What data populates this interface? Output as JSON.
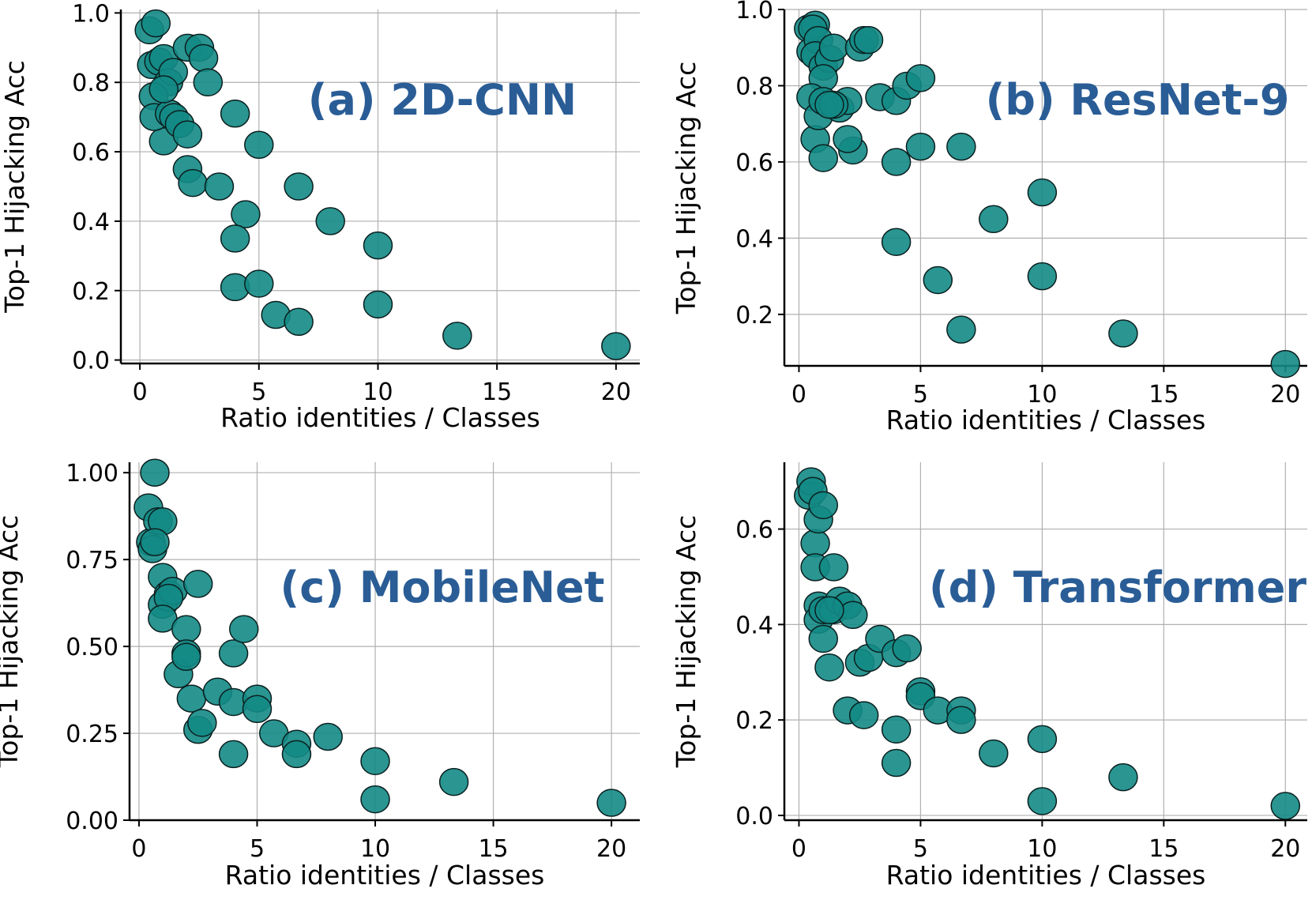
{
  "colors": {
    "point_fill": "#138a85",
    "title_color": "#2a5d96"
  },
  "chart_data": [
    {
      "type": "scatter",
      "title": "(a) 2D-CNN",
      "xlabel": "Ratio identities / Classes",
      "ylabel": "Top-1 Hijacking Acc",
      "xlim": [
        -0.8,
        21
      ],
      "ylim": [
        -0.01,
        1.01
      ],
      "xticks": [
        0,
        5,
        10,
        15,
        20
      ],
      "xtick_labels": [
        "0",
        "5",
        "10",
        "15",
        "20"
      ],
      "yticks": [
        0.0,
        0.2,
        0.4,
        0.6,
        0.8,
        1.0
      ],
      "ytick_labels": [
        "0.0",
        "0.2",
        "0.4",
        "0.6",
        "0.8",
        "1.0"
      ],
      "legend_position": "top-right",
      "grid": true,
      "x": [
        0.4,
        0.67,
        0.5,
        0.8,
        1.0,
        1.2,
        1.4,
        0.57,
        1.0,
        0.6,
        1.25,
        1.43,
        1.67,
        2.0,
        1.0,
        2.0,
        2.5,
        2.67,
        2.86,
        2.0,
        2.22,
        3.33,
        4.0,
        4.44,
        4.0,
        4.0,
        5.0,
        5.0,
        5.71,
        6.67,
        6.67,
        8.0,
        10.0,
        10.0,
        13.33,
        20.0
      ],
      "y": [
        0.95,
        0.97,
        0.85,
        0.86,
        0.87,
        0.8,
        0.83,
        0.76,
        0.63,
        0.7,
        0.71,
        0.7,
        0.68,
        0.65,
        0.78,
        0.9,
        0.9,
        0.87,
        0.8,
        0.55,
        0.51,
        0.5,
        0.71,
        0.42,
        0.35,
        0.21,
        0.62,
        0.22,
        0.13,
        0.5,
        0.11,
        0.4,
        0.33,
        0.16,
        0.07,
        0.04
      ]
    },
    {
      "type": "scatter",
      "title": "(b) ResNet-9",
      "xlabel": "Ratio identities / Classes",
      "ylabel": "Top-1 Hijacking Acc",
      "xlim": [
        -0.6,
        20.9
      ],
      "ylim": [
        0.065,
        1.0
      ],
      "xticks": [
        0,
        5,
        10,
        15,
        20
      ],
      "xtick_labels": [
        "0",
        "5",
        "10",
        "15",
        "20"
      ],
      "yticks": [
        0.2,
        0.4,
        0.6,
        0.8,
        1.0
      ],
      "ytick_labels": [
        "0.2",
        "0.4",
        "0.6",
        "0.8",
        "1.0"
      ],
      "legend_position": "top-right",
      "grid": true,
      "x": [
        0.4,
        0.67,
        0.5,
        0.57,
        0.8,
        0.67,
        1.0,
        1.25,
        1.43,
        1.0,
        0.5,
        0.67,
        0.8,
        1.0,
        1.0,
        1.67,
        2.0,
        2.22,
        1.43,
        1.25,
        2.0,
        2.5,
        2.67,
        2.86,
        3.33,
        4.0,
        4.0,
        4.44,
        4.0,
        5.0,
        5.0,
        5.71,
        6.67,
        6.67,
        8.0,
        10.0,
        10.0,
        13.33,
        20.0
      ],
      "y": [
        0.95,
        0.96,
        0.89,
        0.95,
        0.92,
        0.88,
        0.85,
        0.87,
        0.9,
        0.82,
        0.77,
        0.66,
        0.72,
        0.61,
        0.76,
        0.74,
        0.76,
        0.63,
        0.75,
        0.75,
        0.66,
        0.9,
        0.92,
        0.92,
        0.77,
        0.76,
        0.6,
        0.8,
        0.39,
        0.82,
        0.64,
        0.29,
        0.64,
        0.16,
        0.45,
        0.52,
        0.3,
        0.15,
        0.07
      ]
    },
    {
      "type": "scatter",
      "title": "(c) MobileNet",
      "xlabel": "Ratio identities / Classes",
      "ylabel": "Top-1 Hijacking Acc",
      "xlim": [
        -0.4,
        21.2
      ],
      "ylim": [
        0.0,
        1.03
      ],
      "xticks": [
        0,
        5,
        10,
        15,
        20
      ],
      "xtick_labels": [
        "0",
        "5",
        "10",
        "15",
        "20"
      ],
      "yticks": [
        0.0,
        0.25,
        0.5,
        0.75,
        1.0
      ],
      "ytick_labels": [
        "0.00",
        "0.25",
        "0.50",
        "0.75",
        "1.00"
      ],
      "legend_position": "top-right",
      "grid": true,
      "x": [
        0.4,
        0.67,
        0.5,
        0.57,
        0.8,
        1.0,
        1.0,
        1.25,
        1.0,
        0.67,
        1.43,
        1.25,
        1.0,
        1.67,
        2.0,
        2.0,
        2.22,
        2.5,
        2.0,
        2.5,
        2.67,
        3.33,
        4.0,
        4.0,
        4.44,
        4.0,
        5.0,
        5.0,
        5.71,
        6.67,
        6.67,
        8.0,
        10.0,
        10.0,
        13.33,
        20.0
      ],
      "y": [
        0.9,
        1.0,
        0.8,
        0.78,
        0.86,
        0.86,
        0.7,
        0.65,
        0.62,
        0.8,
        0.66,
        0.64,
        0.58,
        0.42,
        0.55,
        0.48,
        0.35,
        0.68,
        0.47,
        0.26,
        0.28,
        0.37,
        0.48,
        0.34,
        0.55,
        0.19,
        0.35,
        0.32,
        0.25,
        0.22,
        0.19,
        0.24,
        0.17,
        0.06,
        0.11,
        0.05
      ]
    },
    {
      "type": "scatter",
      "title": "(d) Transformer",
      "xlabel": "Ratio identities / Classes",
      "ylabel": "Top-1 Hijacking Acc",
      "xlim": [
        -0.6,
        20.9
      ],
      "ylim": [
        -0.01,
        0.74
      ],
      "xticks": [
        0,
        5,
        10,
        15,
        20
      ],
      "xtick_labels": [
        "0",
        "5",
        "10",
        "15",
        "20"
      ],
      "yticks": [
        0.0,
        0.2,
        0.4,
        0.6
      ],
      "ytick_labels": [
        "0.0",
        "0.2",
        "0.4",
        "0.6"
      ],
      "legend_position": "top-right",
      "grid": true,
      "x": [
        0.4,
        0.5,
        0.57,
        0.67,
        0.8,
        1.0,
        0.67,
        0.8,
        0.8,
        1.0,
        1.25,
        1.0,
        1.43,
        1.43,
        1.67,
        2.0,
        2.22,
        1.25,
        2.0,
        2.5,
        2.67,
        2.86,
        3.33,
        4.0,
        4.0,
        4.44,
        4.0,
        5.0,
        5.0,
        5.71,
        6.67,
        6.67,
        8.0,
        10.0,
        10.0,
        13.33,
        20.0
      ],
      "y": [
        0.67,
        0.7,
        0.68,
        0.57,
        0.62,
        0.65,
        0.52,
        0.44,
        0.41,
        0.37,
        0.31,
        0.43,
        0.52,
        0.43,
        0.45,
        0.44,
        0.42,
        0.43,
        0.22,
        0.32,
        0.21,
        0.33,
        0.37,
        0.34,
        0.18,
        0.35,
        0.11,
        0.26,
        0.25,
        0.22,
        0.22,
        0.2,
        0.13,
        0.16,
        0.03,
        0.08,
        0.02
      ]
    }
  ]
}
